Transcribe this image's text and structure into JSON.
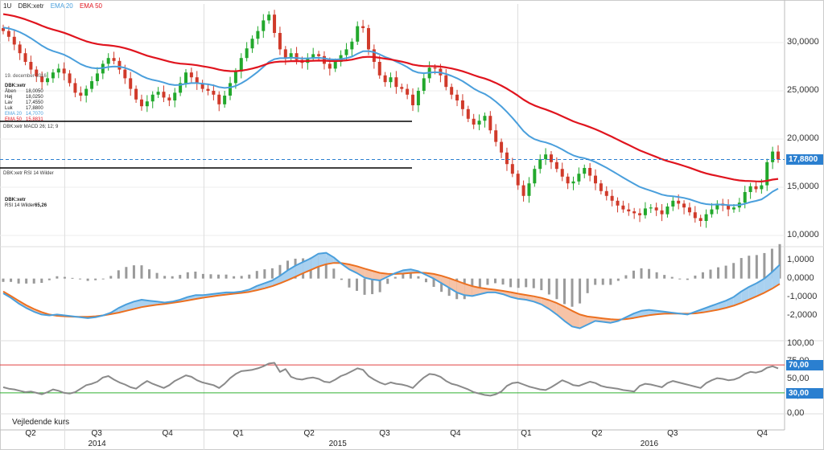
{
  "header": {
    "interval": "1U",
    "symbol": "DBK:xetr",
    "ema20_label": "EMA 20",
    "ema50_label": "EMA 50"
  },
  "info_box": {
    "date": "19. december 2016",
    "symbol": "DBK:xetr",
    "rows": [
      {
        "key": "Åben",
        "value": "18,0050"
      },
      {
        "key": "Høj",
        "value": "18,0250"
      },
      {
        "key": "Lav",
        "value": "17,4550"
      },
      {
        "key": "Luk",
        "value": "17,8800"
      },
      {
        "key": "EMA 20",
        "value": "14,7070"
      },
      {
        "key": "EMA 50",
        "value": "15,8831"
      }
    ]
  },
  "macd_label": "DBK:xetr  MACD 26; 12; 9",
  "rsi_label": "DBK:xetr  RSI 14 Wilder",
  "rsi_info": {
    "symbol": "DBK:xetr",
    "label": "RSI 14 Wilder",
    "value": "65,26"
  },
  "bottom_label": "Vejledende kurs",
  "colors": {
    "up": "#22a82c",
    "down": "#d03a2a",
    "ema20": "#4a9fdc",
    "ema50": "#e0141e",
    "signal": "#ec7020",
    "hist": "#9a9a9a",
    "rsi": "#8a8a8a",
    "rsi_upper": "#e04040",
    "rsi_lower": "#30b030",
    "last_price": "#2a7fd0",
    "badge_ema20": "#4a9fdc",
    "badge_ema50": "#e0141e",
    "badge_rsi_upper": "#2a7fd0",
    "badge_rsi_lower": "#2a7fd0"
  },
  "chart_data": {
    "type": "candlestick",
    "x_ticks": [
      {
        "label": "Q2",
        "t": 0.05
      },
      {
        "label": "Q3",
        "t": 0.19
      },
      {
        "label": "Q4",
        "t": 0.34
      },
      {
        "label": "Q1",
        "t": 0.49
      },
      {
        "label": "Q2",
        "t": 0.64
      },
      {
        "label": "Q3",
        "t": 0.8
      },
      {
        "label": "Q4",
        "t": 0.95
      },
      {
        "label": "Q1",
        "t": 1.1
      },
      {
        "label": "Q2",
        "t": 1.25
      },
      {
        "label": "Q3",
        "t": 1.41
      },
      {
        "label": "Q4",
        "t": 1.6
      }
    ],
    "years": [
      {
        "label": "2014",
        "t": 0.19
      },
      {
        "label": "2015",
        "t": 0.7
      },
      {
        "label": "2016",
        "t": 1.36
      }
    ],
    "year_separators": [
      0.12,
      0.415,
      1.08
    ],
    "price_axis": {
      "ylim": [
        9.0,
        34.0
      ],
      "ticks": [
        "30,0000",
        "25,0000",
        "20,0000",
        "15,0000",
        "10,0000"
      ],
      "tick_values": [
        30,
        25,
        20,
        15,
        10
      ],
      "last_price": 17.88,
      "last_price_label": "17,8800"
    },
    "price_close": [
      31.2,
      30.6,
      29.8,
      28.9,
      28.0,
      27.2,
      26.5,
      25.9,
      26.3,
      26.9,
      27.3,
      26.8,
      25.8,
      24.8,
      24.5,
      25.2,
      26.0,
      26.8,
      27.8,
      28.4,
      28.1,
      27.2,
      26.3,
      25.2,
      24.1,
      23.4,
      23.9,
      24.6,
      24.9,
      24.3,
      24.0,
      24.8,
      25.8,
      26.9,
      26.4,
      25.8,
      25.2,
      25.0,
      24.6,
      23.6,
      24.5,
      25.8,
      27.0,
      28.4,
      29.4,
      30.4,
      31.2,
      32.3,
      32.9,
      31.0,
      29.3,
      28.4,
      28.9,
      28.2,
      27.9,
      28.4,
      28.8,
      28.6,
      27.8,
      27.3,
      28.0,
      28.7,
      29.3,
      30.1,
      31.7,
      31.5,
      29.3,
      28.0,
      26.6,
      25.9,
      26.4,
      25.4,
      25.2,
      24.6,
      23.5,
      25.0,
      26.3,
      27.4,
      27.3,
      26.6,
      25.4,
      24.6,
      24.0,
      23.1,
      22.1,
      21.5,
      21.9,
      22.4,
      20.9,
      19.7,
      18.6,
      17.4,
      16.4,
      15.2,
      14.1,
      15.4,
      16.9,
      17.9,
      18.4,
      17.6,
      16.9,
      16.1,
      15.4,
      15.6,
      16.4,
      17.0,
      16.2,
      15.4,
      14.6,
      14.1,
      13.6,
      13.1,
      12.7,
      12.5,
      12.3,
      12.1,
      12.8,
      12.9,
      12.6,
      12.2,
      13.0,
      13.6,
      13.3,
      12.9,
      12.4,
      11.8,
      11.5,
      12.2,
      12.7,
      13.3,
      13.1,
      12.7,
      12.9,
      13.4,
      14.5,
      15.1,
      14.8,
      15.2,
      17.6,
      18.7,
      17.88
    ],
    "macd_axis": {
      "ylim": [
        -3.2,
        1.6
      ],
      "ticks": [
        "1,0000",
        "0,0000",
        "-1,0000",
        "-2,0000"
      ],
      "tick_values": [
        1,
        0,
        -1,
        -2
      ]
    },
    "macd": [
      -0.8,
      -1.05,
      -1.35,
      -1.6,
      -1.8,
      -1.95,
      -2.0,
      -1.95,
      -2.0,
      -2.05,
      -2.1,
      -2.15,
      -2.1,
      -2.0,
      -1.85,
      -1.6,
      -1.4,
      -1.25,
      -1.15,
      -1.2,
      -1.25,
      -1.3,
      -1.25,
      -1.15,
      -1.0,
      -0.9,
      -0.9,
      -0.85,
      -0.8,
      -0.75,
      -0.75,
      -0.7,
      -0.6,
      -0.4,
      -0.25,
      -0.1,
      0.15,
      0.45,
      0.7,
      0.9,
      1.1,
      1.35,
      1.4,
      1.15,
      0.8,
      0.5,
      0.3,
      0.05,
      -0.05,
      -0.1,
      0.1,
      0.3,
      0.45,
      0.5,
      0.4,
      0.2,
      0.0,
      -0.25,
      -0.5,
      -0.75,
      -0.9,
      -0.95,
      -0.85,
      -0.75,
      -0.75,
      -0.85,
      -1.0,
      -1.1,
      -1.15,
      -1.25,
      -1.4,
      -1.65,
      -1.95,
      -2.3,
      -2.6,
      -2.7,
      -2.5,
      -2.3,
      -2.35,
      -2.4,
      -2.3,
      -2.1,
      -1.9,
      -1.75,
      -1.7,
      -1.75,
      -1.8,
      -1.85,
      -1.9,
      -1.95,
      -1.8,
      -1.65,
      -1.5,
      -1.35,
      -1.2,
      -1.0,
      -0.7,
      -0.45,
      -0.25,
      0.0,
      0.35,
      0.75
    ],
    "macd_signal": [
      -0.7,
      -0.95,
      -1.2,
      -1.45,
      -1.65,
      -1.82,
      -1.95,
      -2.02,
      -2.05,
      -2.07,
      -2.08,
      -2.08,
      -2.05,
      -2.0,
      -1.93,
      -1.85,
      -1.75,
      -1.65,
      -1.55,
      -1.48,
      -1.42,
      -1.38,
      -1.32,
      -1.26,
      -1.19,
      -1.11,
      -1.04,
      -0.98,
      -0.92,
      -0.87,
      -0.82,
      -0.78,
      -0.72,
      -0.63,
      -0.53,
      -0.41,
      -0.26,
      -0.09,
      0.1,
      0.29,
      0.47,
      0.65,
      0.78,
      0.85,
      0.84,
      0.77,
      0.67,
      0.54,
      0.42,
      0.31,
      0.26,
      0.25,
      0.27,
      0.31,
      0.33,
      0.31,
      0.25,
      0.15,
      0.02,
      -0.13,
      -0.28,
      -0.41,
      -0.5,
      -0.56,
      -0.61,
      -0.67,
      -0.74,
      -0.82,
      -0.89,
      -0.96,
      -1.05,
      -1.17,
      -1.33,
      -1.53,
      -1.75,
      -1.95,
      -2.06,
      -2.11,
      -2.16,
      -2.21,
      -2.23,
      -2.2,
      -2.14,
      -2.06,
      -1.99,
      -1.94,
      -1.91,
      -1.9,
      -1.9,
      -1.91,
      -1.89,
      -1.84,
      -1.77,
      -1.69,
      -1.59,
      -1.47,
      -1.32,
      -1.14,
      -0.96,
      -0.77,
      -0.55,
      -0.29
    ],
    "rsi_axis": {
      "ylim": [
        0,
        100
      ],
      "ticks": [
        "100,00",
        "75,00",
        "50,00",
        "25,00",
        "0,00"
      ],
      "tick_values": [
        100,
        75,
        50,
        25,
        0
      ],
      "upper": 70,
      "lower": 30,
      "upper_label": "70,00",
      "lower_label": "30,00"
    },
    "rsi": [
      38,
      36,
      35,
      33,
      31,
      32,
      30,
      28,
      31,
      35,
      33,
      30,
      29,
      31,
      36,
      41,
      43,
      46,
      52,
      54,
      49,
      45,
      42,
      38,
      36,
      42,
      47,
      43,
      40,
      37,
      41,
      47,
      51,
      55,
      53,
      48,
      45,
      43,
      41,
      37,
      43,
      51,
      57,
      61,
      62,
      63,
      65,
      68,
      72,
      73,
      60,
      64,
      53,
      50,
      49,
      51,
      52,
      50,
      46,
      45,
      49,
      54,
      57,
      61,
      65,
      63,
      54,
      49,
      45,
      42,
      45,
      43,
      42,
      40,
      37,
      45,
      52,
      57,
      56,
      53,
      47,
      43,
      41,
      38,
      35,
      31,
      29,
      27,
      26,
      28,
      32,
      40,
      44,
      45,
      42,
      39,
      37,
      35,
      34,
      38,
      43,
      48,
      45,
      41,
      40,
      43,
      46,
      44,
      40,
      38,
      37,
      36,
      34,
      33,
      32,
      40,
      43,
      42,
      40,
      38,
      44,
      47,
      45,
      43,
      41,
      39,
      37,
      44,
      48,
      51,
      50,
      48,
      49,
      52,
      57,
      60,
      59,
      61,
      66,
      68,
      65
    ]
  }
}
